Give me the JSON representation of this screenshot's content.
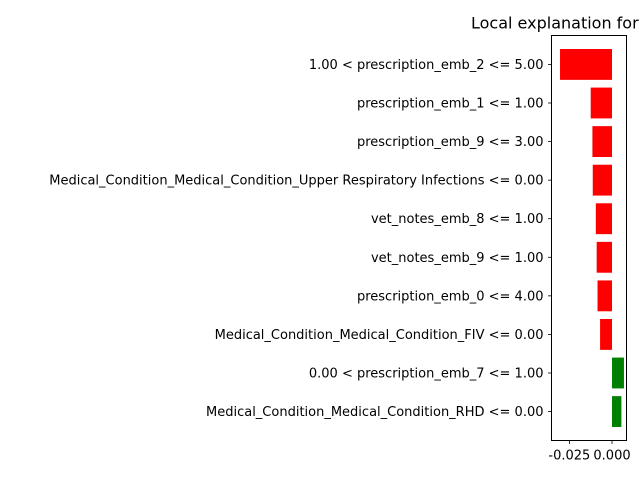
{
  "chart_data": {
    "type": "bar",
    "orientation": "horizontal",
    "title": "Local explanation for",
    "xlabel": "",
    "ylabel": "",
    "xlim": [
      -0.0355,
      0.0085
    ],
    "xticks": [
      -0.025,
      0.0
    ],
    "xtick_labels": [
      "-0.025",
      "0.000"
    ],
    "grid": false,
    "legend": "none",
    "colors": {
      "positive": "#008000",
      "negative": "#ff0000"
    },
    "categories": [
      "1.00 < prescription_emb_2 <= 5.00",
      "prescription_emb_1 <= 1.00",
      "prescription_emb_9 <= 3.00",
      "Medical_Condition_Medical_Condition_Upper Respiratory Infections <= 0.00",
      "vet_notes_emb_8 <= 1.00",
      "vet_notes_emb_9 <= 1.00",
      "prescription_emb_0 <= 4.00",
      "Medical_Condition_Medical_Condition_FIV <= 0.00",
      "0.00 < prescription_emb_7 <= 1.00",
      "Medical_Condition_Medical_Condition_RHD <= 0.00"
    ],
    "values": [
      -0.0305,
      -0.0125,
      -0.0115,
      -0.0113,
      -0.0095,
      -0.009,
      -0.0085,
      -0.007,
      0.007,
      0.0055
    ]
  }
}
